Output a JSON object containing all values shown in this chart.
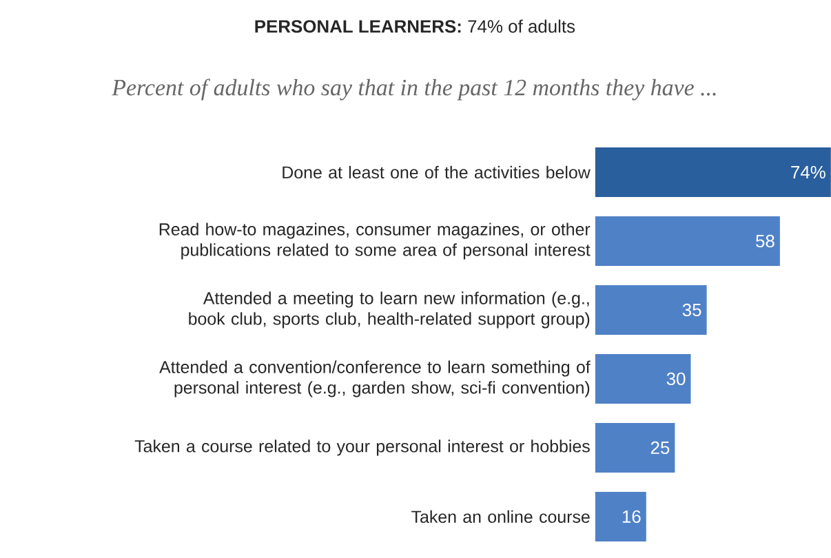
{
  "chart_data": {
    "type": "bar",
    "orientation": "horizontal",
    "title": "**PERSONAL LEARNERS:** 74% of adults",
    "subtitle": "Percent of adults who say that in the past 12 months they have ...",
    "categories": [
      "Done at least one of the activities below",
      "Read how-to magazines, consumer magazines, or other publications related to some area of personal interest",
      "Attended a meeting to learn new information (e.g., book club, sports club, health-related support group)",
      "Attended a convention/conference to learn something of personal interest (e.g., garden show, sci-fi convention)",
      "Taken a course related to your personal interest or hobbies",
      "Taken an online course"
    ],
    "values": [
      74,
      58,
      35,
      30,
      25,
      16
    ],
    "value_labels": [
      "74%",
      "58",
      "35",
      "30",
      "25",
      "16"
    ],
    "colors": [
      "#2a5f9e",
      "#4f81c7",
      "#4f81c7",
      "#4f81c7",
      "#4f81c7",
      "#4f81c7"
    ]
  }
}
